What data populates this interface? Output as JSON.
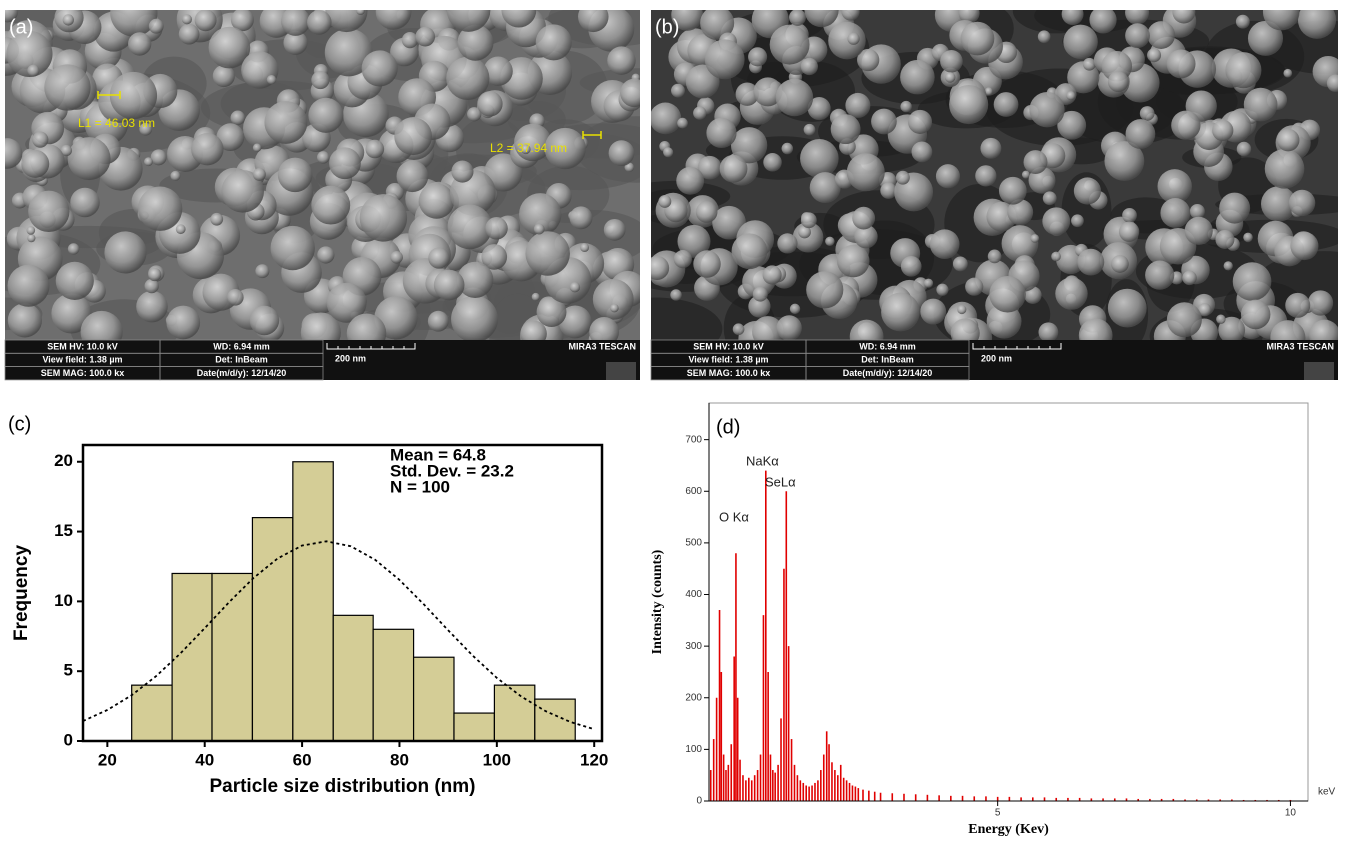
{
  "sem_images": [
    {
      "label": "(a)",
      "annotations": [
        "L1 = 46.03 nm",
        "L2 = 37.94 nm"
      ],
      "info_bar": [
        "SEM HV: 10.0 kV",
        "View field: 1.38 µm",
        "SEM MAG: 100.0 kx",
        "WD: 6.94 mm",
        "Det: InBeam",
        "Date(m/d/y): 12/14/20",
        "200 nm",
        "MIRA3 TESCAN"
      ]
    },
    {
      "label": "(b)",
      "info_bar": [
        "SEM HV: 10.0 kV",
        "View field: 1.38 µm",
        "SEM MAG: 100.0 kx",
        "WD: 6.94 mm",
        "Det: InBeam",
        "Date(m/d/y): 12/14/20",
        "200 nm",
        "MIRA3 TESCAN"
      ]
    }
  ],
  "chart_data": [
    {
      "type": "histogram",
      "title": "(c)",
      "bins": [
        25,
        33.3,
        41.5,
        49.8,
        58.1,
        66.4,
        74.6,
        82.9,
        91.2,
        99.5,
        107.8,
        116.1
      ],
      "values": [
        4,
        12,
        12,
        16,
        20,
        9,
        8,
        6,
        2,
        4,
        3
      ],
      "color": "#d4cd96",
      "xlim": [
        15,
        121.6
      ],
      "ylim": [
        0,
        21.2
      ],
      "xticks": [
        20,
        40,
        60,
        80,
        100,
        120
      ],
      "yticks": [
        0,
        5,
        10,
        15,
        20
      ],
      "xlabel": "Particle size distribution (nm)",
      "ylabel": "Frequency",
      "annotations": [
        "Mean = 64.8",
        "Std. Dev. = 23.2",
        "N = 100"
      ],
      "fit_curve": {
        "x": [
          15,
          20,
          25,
          30,
          35,
          40,
          45,
          50,
          55,
          60,
          65,
          70,
          75,
          80,
          85,
          90,
          95,
          100,
          105,
          110,
          115,
          120
        ],
        "y": [
          1.43,
          2.22,
          3.28,
          4.64,
          6.27,
          8.08,
          9.94,
          11.67,
          13.08,
          14.0,
          14.3,
          13.95,
          12.98,
          11.54,
          9.79,
          7.93,
          6.13,
          4.52,
          3.19,
          2.14,
          1.38,
          0.84
        ]
      }
    },
    {
      "type": "spectrum",
      "title": "(d)",
      "x": [
        0.1,
        0.15,
        0.2,
        0.25,
        0.28,
        0.32,
        0.36,
        0.4,
        0.45,
        0.5,
        0.53,
        0.56,
        0.6,
        0.65,
        0.7,
        0.75,
        0.8,
        0.85,
        0.9,
        0.95,
        1.0,
        1.04,
        1.08,
        1.12,
        1.16,
        1.2,
        1.25,
        1.3,
        1.35,
        1.39,
        1.43,
        1.48,
        1.53,
        1.58,
        1.63,
        1.68,
        1.73,
        1.78,
        1.83,
        1.88,
        1.93,
        1.98,
        2.03,
        2.08,
        2.12,
        2.17,
        2.22,
        2.27,
        2.32,
        2.37,
        2.42,
        2.47,
        2.52,
        2.57,
        2.62,
        2.7,
        2.8,
        2.9,
        3.0,
        3.2,
        3.4,
        3.6,
        3.8,
        4.0,
        4.2,
        4.4,
        4.6,
        4.8,
        5.0,
        5.2,
        5.4,
        5.6,
        5.8,
        6.0,
        6.2,
        6.4,
        6.6,
        6.8,
        7.0,
        7.2,
        7.4,
        7.6,
        7.8,
        8.0,
        8.2,
        8.4,
        8.6,
        8.8,
        9.0,
        9.2,
        9.4,
        9.6,
        9.8,
        10.0
      ],
      "values": [
        60,
        120,
        200,
        370,
        250,
        90,
        60,
        70,
        110,
        280,
        480,
        200,
        80,
        50,
        40,
        45,
        40,
        50,
        60,
        90,
        360,
        640,
        250,
        90,
        60,
        55,
        70,
        160,
        450,
        600,
        300,
        120,
        70,
        50,
        40,
        35,
        30,
        28,
        30,
        35,
        40,
        60,
        90,
        135,
        110,
        75,
        60,
        50,
        70,
        45,
        40,
        35,
        30,
        28,
        25,
        22,
        20,
        18,
        16,
        15,
        14,
        13,
        12,
        11,
        10,
        10,
        9,
        9,
        8,
        8,
        7,
        7,
        7,
        6,
        6,
        6,
        5,
        5,
        5,
        5,
        4,
        4,
        4,
        4,
        3,
        3,
        3,
        3,
        3,
        2,
        2,
        2,
        2,
        2
      ],
      "color": "#e00000",
      "xlim": [
        0.07,
        10.3
      ],
      "ylim": [
        0,
        771
      ],
      "xticks": [
        5,
        10
      ],
      "yticks": [
        0,
        100,
        200,
        300,
        400,
        500,
        600,
        700
      ],
      "xlabel": "Energy (Kev)",
      "ylabel": "Intensity (counts)",
      "x_unit": "keV",
      "annotations": [
        "O Kα",
        "NaKα",
        "SeLα"
      ]
    }
  ]
}
